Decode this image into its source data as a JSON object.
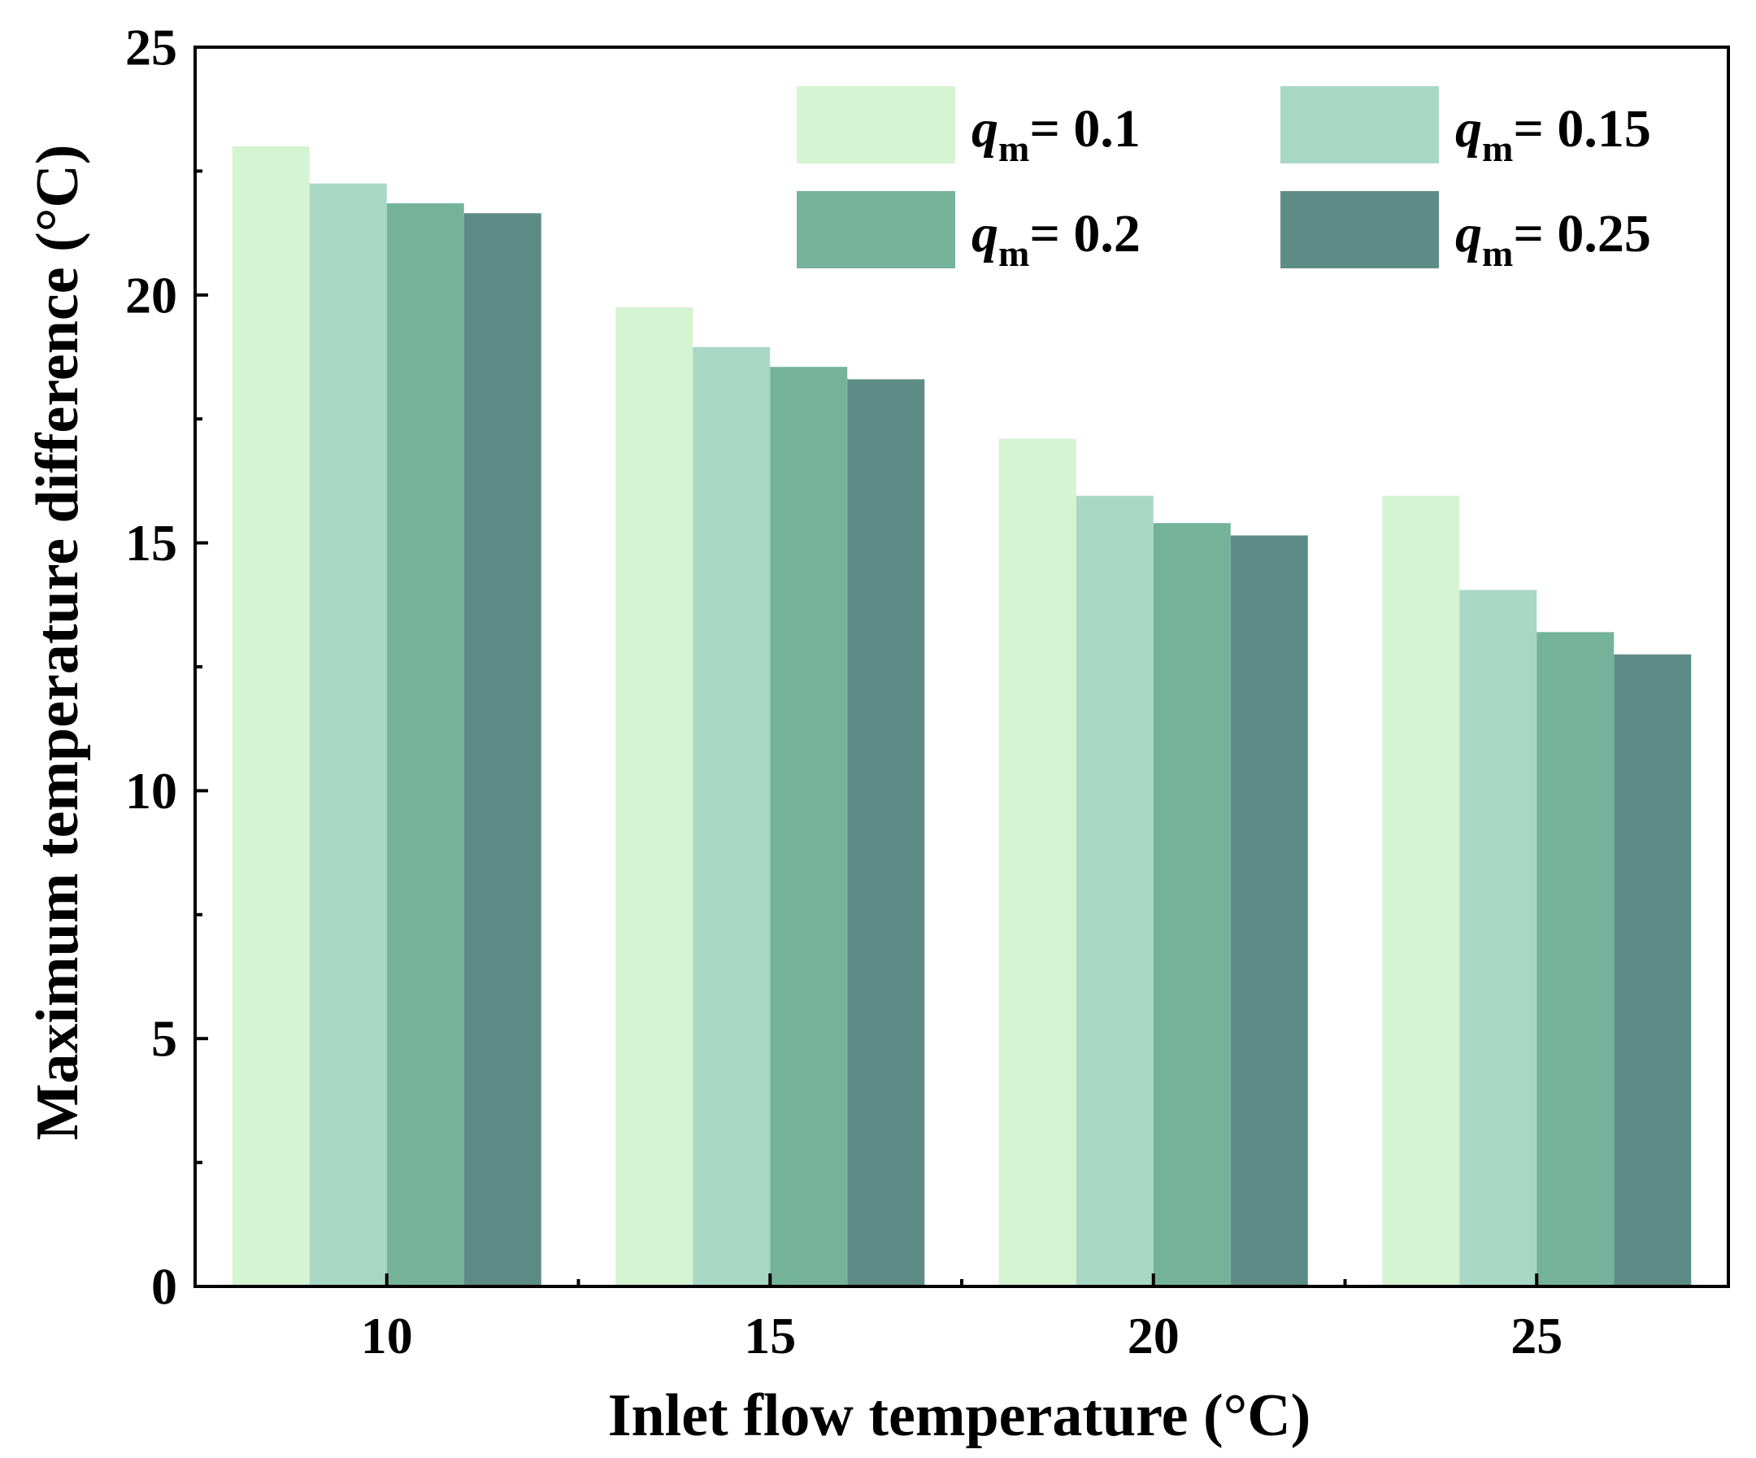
{
  "chart_data": {
    "type": "bar",
    "title": "",
    "xlabel": "Inlet flow temperature (°C)",
    "ylabel": "Maximum temperature difference (°C)",
    "categories": [
      "10",
      "15",
      "20",
      "25"
    ],
    "ylim": [
      0,
      25
    ],
    "yticks": [
      0,
      5,
      10,
      15,
      20,
      25
    ],
    "ytick_labels": [
      "0",
      "5",
      "10",
      "15",
      "20",
      "25"
    ],
    "series": [
      {
        "name": "q_m = 0.1",
        "symbol": "q",
        "subscript": "m",
        "value_label": "= 0.1",
        "color": "#d4f4d2",
        "values": [
          23.0,
          19.75,
          17.1,
          15.95
        ]
      },
      {
        "name": "q_m = 0.15",
        "symbol": "q",
        "subscript": "m",
        "value_label": "= 0.15",
        "color": "#a8d8c5",
        "values": [
          22.25,
          18.95,
          15.95,
          14.05
        ]
      },
      {
        "name": "q_m = 0.2",
        "symbol": "q",
        "subscript": "m",
        "value_label": "= 0.2",
        "color": "#74b39a",
        "values": [
          21.85,
          18.55,
          15.4,
          13.2
        ]
      },
      {
        "name": "q_m = 0.25",
        "symbol": "q",
        "subscript": "m",
        "value_label": "= 0.25",
        "color": "#5d8c86",
        "values": [
          21.65,
          18.3,
          15.15,
          12.75
        ]
      }
    ],
    "legend": {
      "position": "top-right",
      "columns": 2,
      "order": [
        0,
        2,
        1,
        3
      ]
    },
    "grid": false
  }
}
